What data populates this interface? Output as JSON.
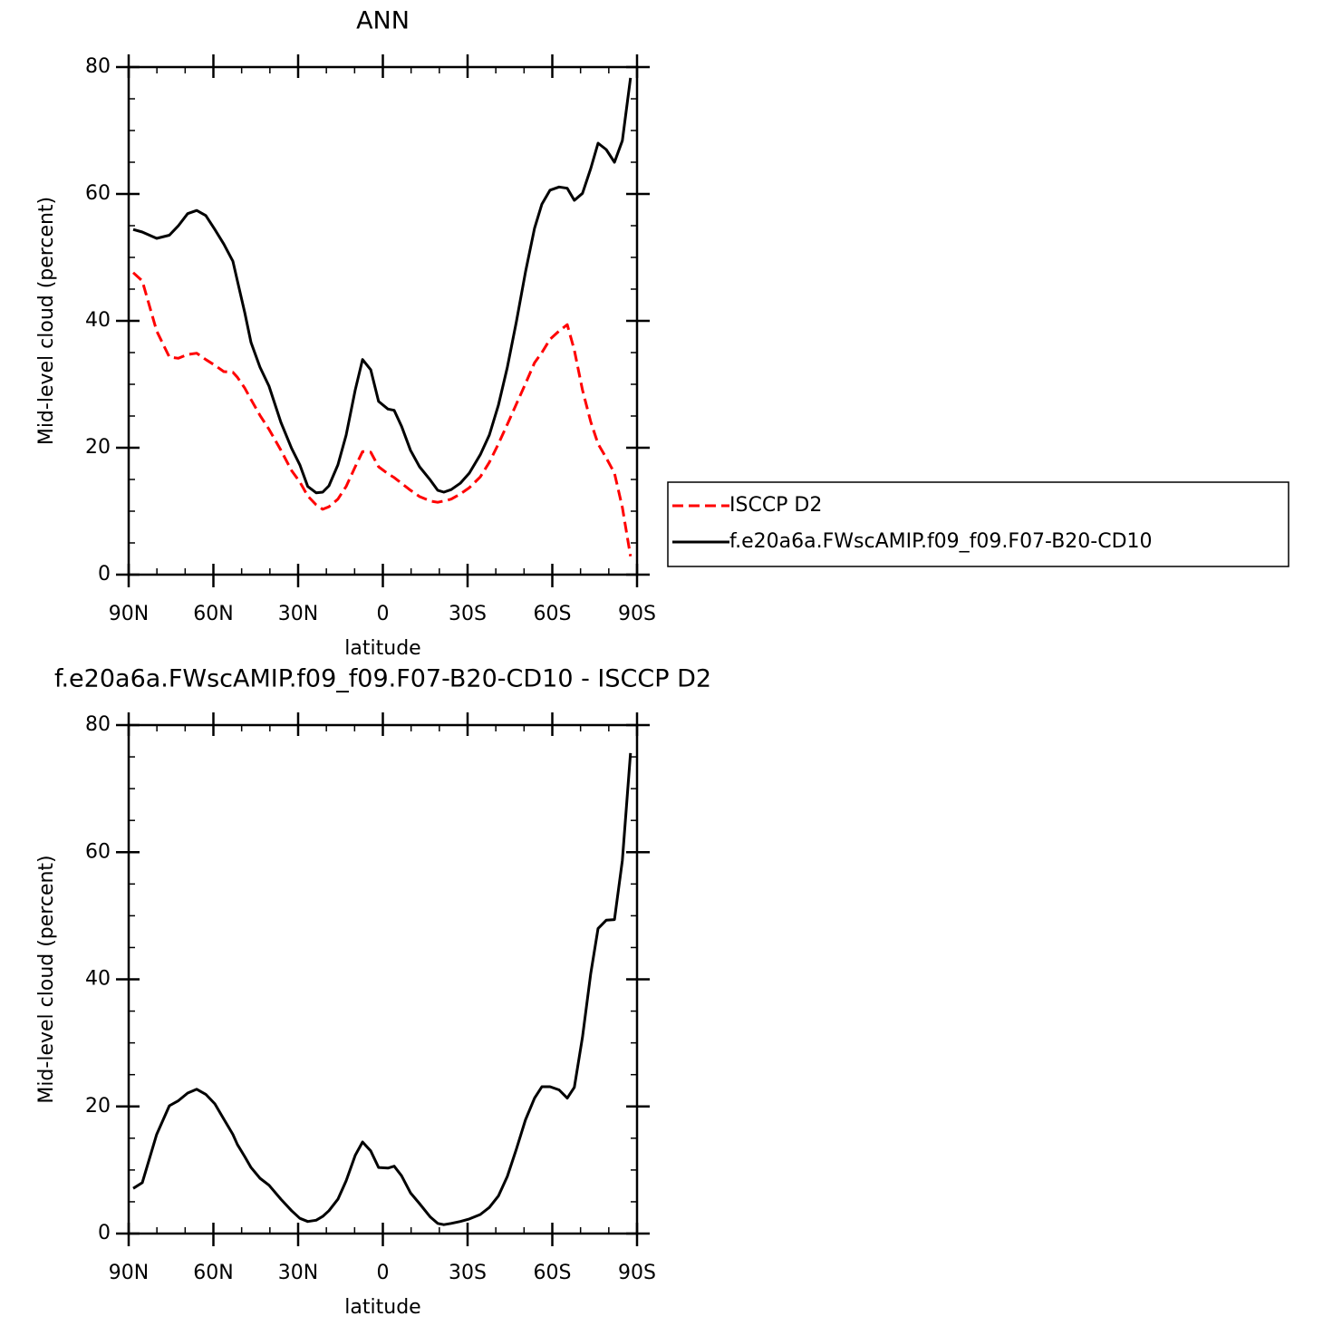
{
  "chart_data": [
    {
      "type": "line",
      "title": "ANN",
      "xlabel": "latitude",
      "ylabel": "Mid-level cloud (percent)",
      "x": [
        88.4,
        85.2,
        80.1,
        75.6,
        72.4,
        69.1,
        65.9,
        62.7,
        59.5,
        56.3,
        53.1,
        51.5,
        48.9,
        46.7,
        43.5,
        40.3,
        36.1,
        32.3,
        29.4,
        26.6,
        23.6,
        21.3,
        19.1,
        15.9,
        13.0,
        9.8,
        7.2,
        4.3,
        1.5,
        -1.8,
        -4.0,
        -6.6,
        -9.8,
        -13.0,
        -16.8,
        -19.4,
        -21.6,
        -24.2,
        -27.4,
        -30.6,
        -34.5,
        -37.7,
        -40.9,
        -44.1,
        -47.3,
        -50.5,
        -53.7,
        -56.3,
        -59.2,
        -62.4,
        -65.3,
        -67.8,
        -70.7,
        -73.6,
        -76.2,
        -79.1,
        -82.0,
        -84.8,
        -87.7
      ],
      "series": [
        {
          "name": "ISCCP D2",
          "color": "#ff0000",
          "linestyle": "dashed",
          "values": [
            47.6,
            46.3,
            38.4,
            34.3,
            34.1,
            34.7,
            34.9,
            33.9,
            33.0,
            32.0,
            31.9,
            31.1,
            29.4,
            27.6,
            25.1,
            22.9,
            19.6,
            16.4,
            14.6,
            12.4,
            11.0,
            10.3,
            10.7,
            11.9,
            13.9,
            17.0,
            19.4,
            19.3,
            17.0,
            15.9,
            15.3,
            14.4,
            13.3,
            12.3,
            11.6,
            11.4,
            11.6,
            11.9,
            12.7,
            13.7,
            15.4,
            17.7,
            20.6,
            23.7,
            26.9,
            30.1,
            33.4,
            35.0,
            37.1,
            38.4,
            39.4,
            35.4,
            29.1,
            24.1,
            20.6,
            18.4,
            16.0,
            10.6,
            2.9
          ]
        },
        {
          "name": "f.e20a6a.FWscAMIP.f09_f09.F07-B20-CD10",
          "color": "#000000",
          "linestyle": "solid",
          "values": [
            54.4,
            54.0,
            53.0,
            53.5,
            55.0,
            56.9,
            57.4,
            56.6,
            54.4,
            52.1,
            49.4,
            46.3,
            41.3,
            36.6,
            32.7,
            29.7,
            24.0,
            19.9,
            17.3,
            13.9,
            12.9,
            13.0,
            14.0,
            17.3,
            22.0,
            29.1,
            33.9,
            32.3,
            27.3,
            26.1,
            25.9,
            23.4,
            19.6,
            17.0,
            14.9,
            13.3,
            13.0,
            13.4,
            14.4,
            16.0,
            18.9,
            22.0,
            26.7,
            32.7,
            39.9,
            47.7,
            54.6,
            58.4,
            60.6,
            61.1,
            60.9,
            59.0,
            60.1,
            64.0,
            68.0,
            67.0,
            65.0,
            68.4,
            78.3
          ]
        }
      ],
      "xlim": [
        90,
        -90
      ],
      "xticks": [
        {
          "value": 90,
          "label": "90N"
        },
        {
          "value": 60,
          "label": "60N"
        },
        {
          "value": 30,
          "label": "30N"
        },
        0,
        {
          "value": -30,
          "label": "30S"
        },
        {
          "value": -60,
          "label": "60S"
        },
        {
          "value": -90,
          "label": "90S"
        }
      ],
      "xminorticks": [
        80,
        70,
        50,
        40,
        20,
        10,
        -10,
        -20,
        -40,
        -50,
        -70,
        -80
      ],
      "ylim": [
        0,
        80
      ],
      "yticks": [
        0,
        20,
        40,
        60,
        80
      ],
      "yminorticks": [
        5,
        10,
        15,
        25,
        30,
        35,
        45,
        50,
        55,
        65,
        70,
        75
      ],
      "legend": "right"
    },
    {
      "type": "line",
      "title": "f.e20a6a.FWscAMIP.f09_f09.F07-B20-CD10 - ISCCP D2",
      "xlabel": "latitude",
      "ylabel": "Mid-level cloud (percent)",
      "x": [
        88.4,
        85.2,
        80.1,
        75.6,
        72.4,
        69.1,
        65.9,
        62.7,
        59.5,
        56.3,
        53.1,
        51.5,
        48.9,
        46.7,
        43.5,
        40.3,
        36.1,
        32.3,
        29.4,
        26.6,
        23.6,
        21.3,
        19.1,
        15.9,
        13.0,
        9.8,
        7.2,
        4.3,
        1.5,
        -1.8,
        -4.0,
        -6.6,
        -9.8,
        -13.0,
        -16.8,
        -19.4,
        -21.6,
        -24.2,
        -27.4,
        -30.6,
        -34.5,
        -37.7,
        -40.9,
        -44.1,
        -47.3,
        -50.5,
        -53.7,
        -56.3,
        -59.2,
        -62.4,
        -65.3,
        -67.8,
        -70.7,
        -73.6,
        -76.2,
        -79.1,
        -82.0,
        -84.8,
        -87.7
      ],
      "values": [
        7.1,
        8.0,
        15.6,
        20.1,
        20.9,
        22.1,
        22.7,
        21.9,
        20.4,
        18.0,
        15.6,
        14.0,
        12.1,
        10.4,
        8.7,
        7.6,
        5.4,
        3.6,
        2.4,
        1.9,
        2.1,
        2.7,
        3.6,
        5.4,
        8.3,
        12.3,
        14.4,
        13.0,
        10.4,
        10.3,
        10.6,
        9.1,
        6.4,
        4.7,
        2.6,
        1.6,
        1.4,
        1.6,
        1.9,
        2.3,
        3.0,
        4.1,
        5.9,
        9.0,
        13.3,
        17.9,
        21.3,
        23.1,
        23.1,
        22.6,
        21.3,
        23.0,
        30.9,
        40.9,
        48.0,
        49.3,
        49.4,
        58.7,
        75.6
      ],
      "color": "#000000",
      "linestyle": "solid",
      "xlim": [
        90,
        -90
      ],
      "xticks": [
        {
          "value": 90,
          "label": "90N"
        },
        {
          "value": 60,
          "label": "60N"
        },
        {
          "value": 30,
          "label": "30N"
        },
        0,
        {
          "value": -30,
          "label": "30S"
        },
        {
          "value": -60,
          "label": "60S"
        },
        {
          "value": -90,
          "label": "90S"
        }
      ],
      "xminorticks": [
        80,
        70,
        50,
        40,
        20,
        10,
        -10,
        -20,
        -40,
        -50,
        -70,
        -80
      ],
      "ylim": [
        0,
        80
      ],
      "yticks": [
        0,
        20,
        40,
        60,
        80
      ],
      "yminorticks": [
        5,
        10,
        15,
        25,
        30,
        35,
        45,
        50,
        55,
        65,
        70,
        75
      ]
    }
  ]
}
